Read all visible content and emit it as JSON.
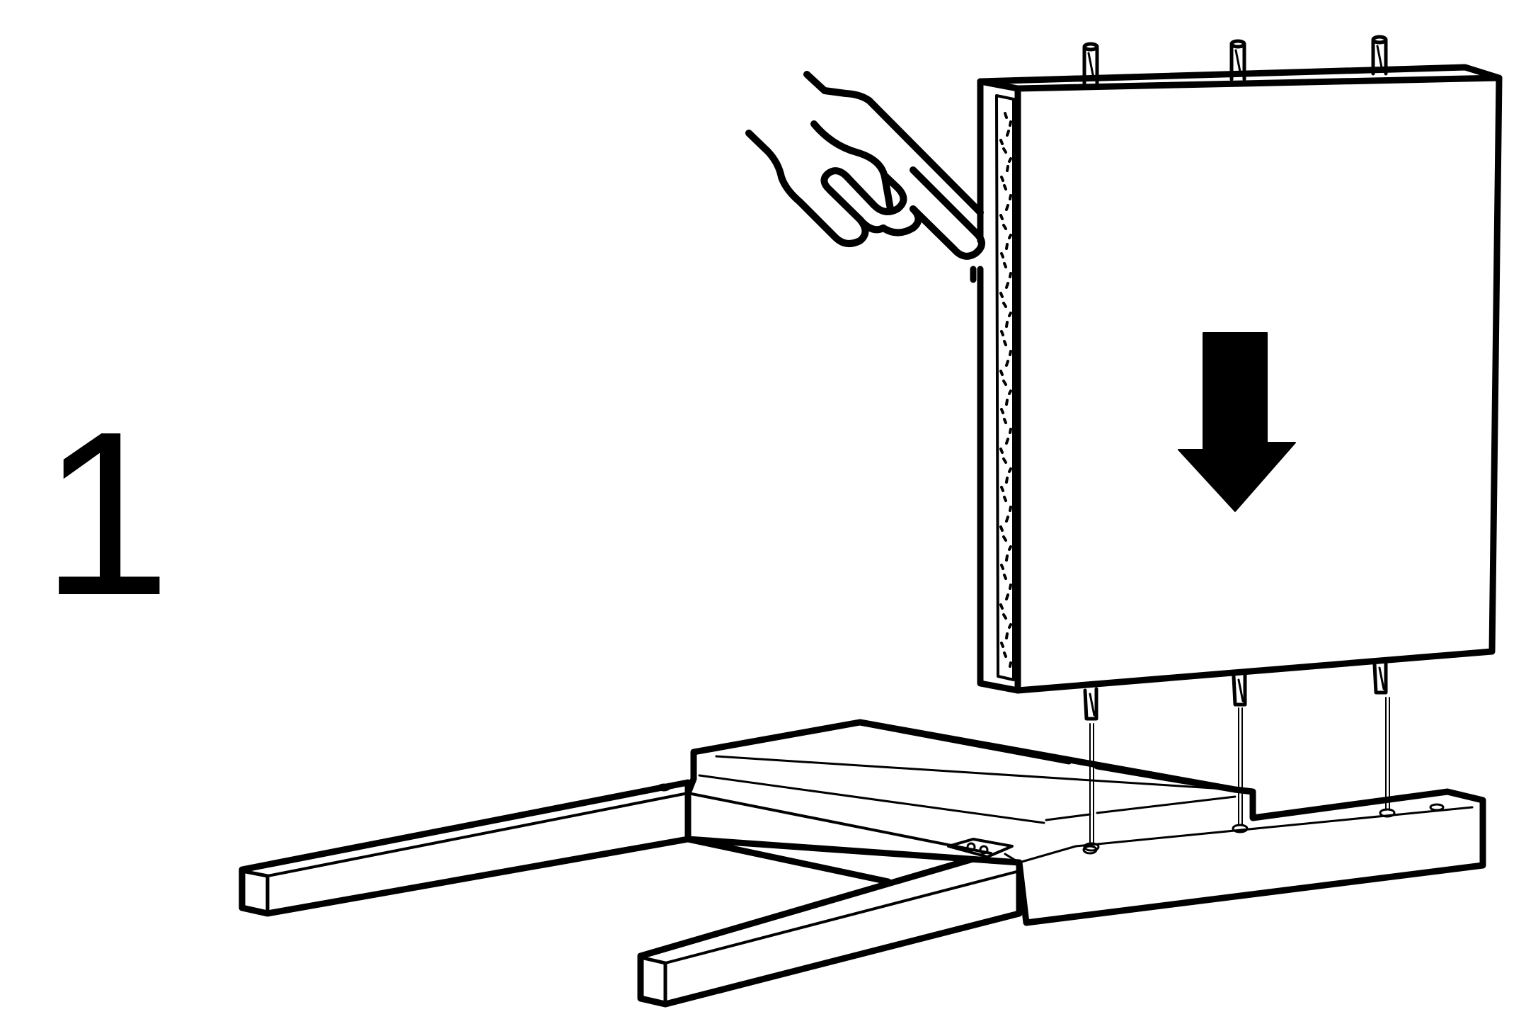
{
  "step": {
    "number": "1"
  },
  "icons": {
    "hand": "hand-holding-icon",
    "arrow": "arrow-down-icon"
  },
  "colors": {
    "line": "#000000",
    "fill": "#ffffff"
  }
}
